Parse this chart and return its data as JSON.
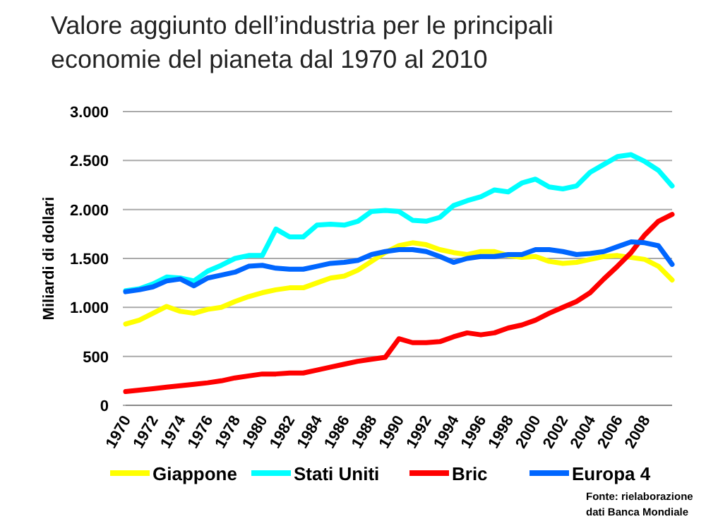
{
  "chart_data": {
    "type": "line",
    "title": "Valore aggiunto dell’industria per le principali economie del pianeta dal 1970 al 2010",
    "ylabel": "Miliardi di dollari",
    "x": [
      1970,
      1971,
      1972,
      1973,
      1974,
      1975,
      1976,
      1977,
      1978,
      1979,
      1980,
      1981,
      1982,
      1983,
      1984,
      1985,
      1986,
      1987,
      1988,
      1989,
      1990,
      1991,
      1992,
      1993,
      1994,
      1995,
      1996,
      1997,
      1998,
      1999,
      2000,
      2001,
      2002,
      2003,
      2004,
      2005,
      2006,
      2007,
      2008,
      2009,
      2010
    ],
    "xlim": [
      1970,
      2010
    ],
    "xticks": [
      1970,
      1972,
      1974,
      1976,
      1978,
      1980,
      1982,
      1984,
      1986,
      1988,
      1990,
      1992,
      1994,
      1996,
      1998,
      2000,
      2002,
      2004,
      2006,
      2008
    ],
    "ylim": [
      0,
      3000
    ],
    "yticks": [
      0,
      500,
      {
        "value": 1000,
        "label": "1.000"
      },
      {
        "value": 1500,
        "label": "1.500"
      },
      {
        "value": 2000,
        "label": "2.000"
      },
      {
        "value": 2500,
        "label": "2.500"
      },
      {
        "value": 3000,
        "label": "3.000"
      }
    ],
    "grid": "y",
    "legend": "bottom",
    "marker": "none",
    "line_style": "solid",
    "series": [
      {
        "name": "Giappone",
        "color": "#ffff00",
        "values": [
          830,
          870,
          940,
          1010,
          960,
          940,
          980,
          1000,
          1060,
          1110,
          1150,
          1180,
          1200,
          1200,
          1250,
          1300,
          1320,
          1380,
          1470,
          1560,
          1630,
          1660,
          1640,
          1590,
          1560,
          1540,
          1570,
          1570,
          1530,
          1510,
          1520,
          1470,
          1450,
          1460,
          1490,
          1520,
          1530,
          1510,
          1490,
          1420,
          1280
        ]
      },
      {
        "name": "Stati Uniti",
        "color": "#00ffff",
        "values": [
          1170,
          1190,
          1240,
          1310,
          1300,
          1270,
          1370,
          1430,
          1500,
          1530,
          1530,
          1800,
          1720,
          1720,
          1840,
          1850,
          1840,
          1880,
          1980,
          1990,
          1980,
          1890,
          1880,
          1920,
          2040,
          2090,
          2130,
          2200,
          2180,
          2270,
          2310,
          2230,
          2210,
          2240,
          2380,
          2460,
          2540,
          2560,
          2490,
          2400,
          2240
        ]
      },
      {
        "name": "Bric",
        "color": "#ff0000",
        "values": [
          140,
          155,
          170,
          185,
          200,
          215,
          230,
          250,
          280,
          300,
          320,
          320,
          330,
          330,
          360,
          390,
          420,
          450,
          470,
          490,
          680,
          640,
          640,
          650,
          700,
          740,
          720,
          740,
          790,
          820,
          870,
          940,
          1000,
          1060,
          1150,
          1290,
          1420,
          1560,
          1740,
          1880,
          1950
        ]
      },
      {
        "name": "Europa 4",
        "color": "#0066ff",
        "values": [
          1160,
          1180,
          1210,
          1270,
          1290,
          1220,
          1300,
          1330,
          1360,
          1420,
          1430,
          1400,
          1390,
          1390,
          1420,
          1450,
          1460,
          1480,
          1540,
          1570,
          1590,
          1590,
          1570,
          1520,
          1460,
          1500,
          1520,
          1520,
          1540,
          1540,
          1590,
          1590,
          1570,
          1540,
          1550,
          1570,
          1620,
          1670,
          1660,
          1630,
          1440
        ]
      }
    ],
    "annotations": [
      "Fonte: rielaborazione dati Banca Mondiale"
    ]
  }
}
